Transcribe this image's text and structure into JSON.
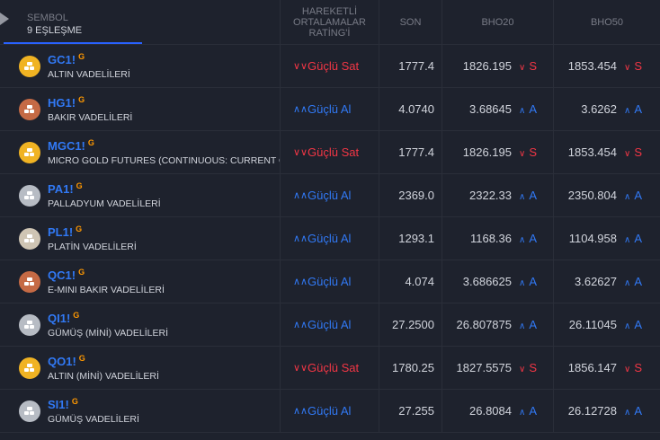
{
  "header": {
    "symbol_label": "SEMBOL",
    "match_count": "9 EŞLEŞME",
    "rating_label": "HAREKETLİ ORTALAMALAR RATİNG'İ",
    "son_label": "SON",
    "bho20_label": "BHO20",
    "bho50_label": "BHO50"
  },
  "colors": {
    "background": "#1e222d",
    "accent_blue": "#3179f5",
    "sell_red": "#f23645",
    "badge_orange": "#ff9800",
    "gold": "#f0b323",
    "copper": "#c56a45",
    "silver": "#b7bcc4",
    "platinum": "#cfc5b4"
  },
  "rows": [
    {
      "ticker": "GC1!",
      "badge": "G",
      "desc": "ALTIN VADELİLERİ",
      "logo": "gold",
      "rating": "Güçlü Sat",
      "rtype": "sell",
      "son": "1777.4",
      "bho20": "1826.195",
      "bho20_sig": "S",
      "bho50": "1853.454",
      "bho50_sig": "S"
    },
    {
      "ticker": "HG1!",
      "badge": "G",
      "desc": "BAKIR VADELİLERİ",
      "logo": "copper",
      "rating": "Güçlü Al",
      "rtype": "buy",
      "son": "4.0740",
      "bho20": "3.68645",
      "bho20_sig": "A",
      "bho50": "3.6262",
      "bho50_sig": "A"
    },
    {
      "ticker": "MGC1!",
      "badge": "G",
      "desc": "MICRO GOLD FUTURES (CONTINUOUS: CURRENT CONTRACT IN FRONT)",
      "logo": "gold",
      "rating": "Güçlü Sat",
      "rtype": "sell",
      "son": "1777.4",
      "bho20": "1826.195",
      "bho20_sig": "S",
      "bho50": "1853.454",
      "bho50_sig": "S"
    },
    {
      "ticker": "PA1!",
      "badge": "G",
      "desc": "PALLADYUM VADELİLERİ",
      "logo": "silver",
      "rating": "Güçlü Al",
      "rtype": "buy",
      "son": "2369.0",
      "bho20": "2322.33",
      "bho20_sig": "A",
      "bho50": "2350.804",
      "bho50_sig": "A"
    },
    {
      "ticker": "PL1!",
      "badge": "G",
      "desc": "PLATİN VADELİLERİ",
      "logo": "platinum",
      "rating": "Güçlü Al",
      "rtype": "buy",
      "son": "1293.1",
      "bho20": "1168.36",
      "bho20_sig": "A",
      "bho50": "1104.958",
      "bho50_sig": "A"
    },
    {
      "ticker": "QC1!",
      "badge": "G",
      "desc": "E-MINI BAKIR VADELİLERİ",
      "logo": "copper",
      "rating": "Güçlü Al",
      "rtype": "buy",
      "son": "4.074",
      "bho20": "3.686625",
      "bho20_sig": "A",
      "bho50": "3.62627",
      "bho50_sig": "A"
    },
    {
      "ticker": "QI1!",
      "badge": "G",
      "desc": "GÜMÜŞ (MİNİ) VADELİLERİ",
      "logo": "silver",
      "rating": "Güçlü Al",
      "rtype": "buy",
      "son": "27.2500",
      "bho20": "26.807875",
      "bho20_sig": "A",
      "bho50": "26.11045",
      "bho50_sig": "A"
    },
    {
      "ticker": "QO1!",
      "badge": "G",
      "desc": "ALTIN (MİNİ) VADELİLERİ",
      "logo": "gold",
      "rating": "Güçlü Sat",
      "rtype": "sell",
      "son": "1780.25",
      "bho20": "1827.5575",
      "bho20_sig": "S",
      "bho50": "1856.147",
      "bho50_sig": "S"
    },
    {
      "ticker": "SI1!",
      "badge": "G",
      "desc": "GÜMÜŞ VADELİLERİ",
      "logo": "silver",
      "rating": "Güçlü Al",
      "rtype": "buy",
      "son": "27.255",
      "bho20": "26.8084",
      "bho20_sig": "A",
      "bho50": "26.12728",
      "bho50_sig": "A"
    }
  ]
}
